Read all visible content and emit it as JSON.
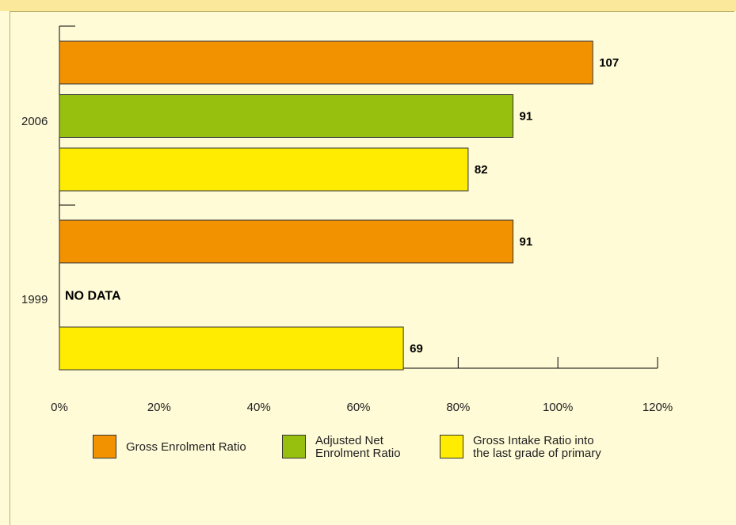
{
  "chart_data": {
    "type": "bar",
    "orientation": "horizontal",
    "categories": [
      "2006",
      "1999"
    ],
    "series": [
      {
        "name": "Gross Enrolment Ratio",
        "color": "#f39200",
        "values": [
          107,
          91
        ]
      },
      {
        "name": "Adjusted Net\nEnrolment Ratio",
        "color": "#97bf0d",
        "values": [
          91,
          null
        ]
      },
      {
        "name": "Gross Intake Ratio into\nthe last grade of primary",
        "color": "#ffec00",
        "values": [
          82,
          69
        ]
      }
    ],
    "data_labels": {
      "2006": [
        "107",
        "91",
        "82"
      ],
      "1999": [
        "91",
        "NO DATA",
        "69"
      ]
    },
    "missing_label": "NO DATA",
    "xticks": [
      "0%",
      "20%",
      "40%",
      "60%",
      "80%",
      "100%",
      "120%"
    ],
    "xlim": [
      0,
      120
    ],
    "legend_position": "bottom"
  }
}
